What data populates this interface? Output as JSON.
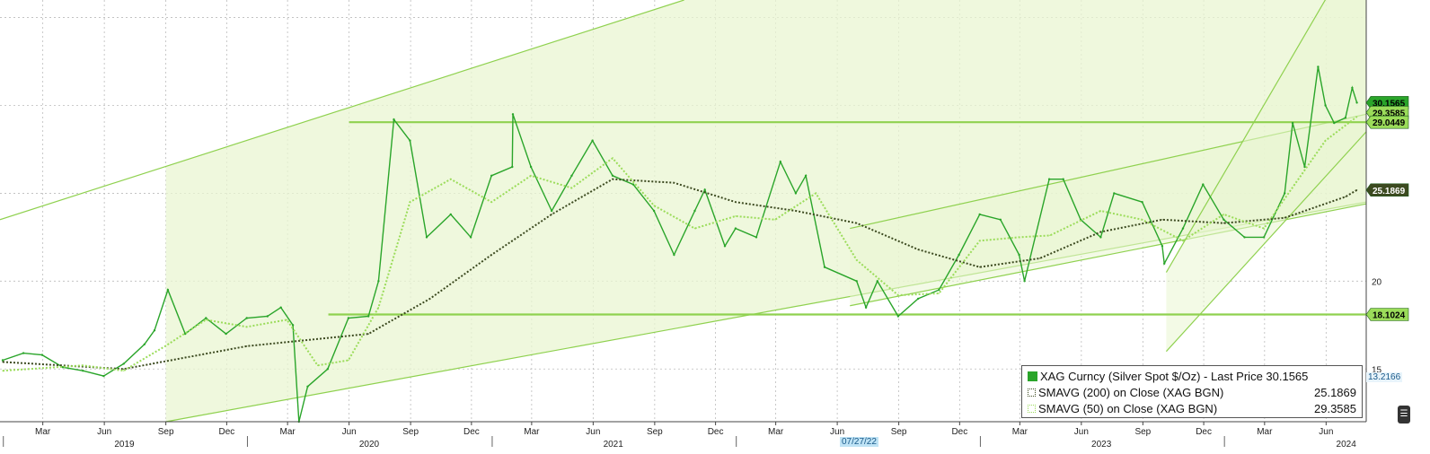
{
  "chart_data": {
    "type": "line",
    "title": "",
    "xlabel": "",
    "ylabel": "",
    "instrument": "XAG Curncy",
    "x_range": [
      "2018-12-27",
      "2024-07-31"
    ],
    "y_range": [
      12,
      36
    ],
    "y_ticks": [
      15,
      20
    ],
    "x_month_ticks": [
      {
        "label": "Mar",
        "date": "2019-03-01"
      },
      {
        "label": "Jun",
        "date": "2019-06-01"
      },
      {
        "label": "Sep",
        "date": "2019-09-01"
      },
      {
        "label": "Dec",
        "date": "2019-12-01"
      },
      {
        "label": "Mar",
        "date": "2020-03-01"
      },
      {
        "label": "Jun",
        "date": "2020-06-01"
      },
      {
        "label": "Sep",
        "date": "2020-09-01"
      },
      {
        "label": "Dec",
        "date": "2020-12-01"
      },
      {
        "label": "Mar",
        "date": "2021-03-01"
      },
      {
        "label": "Jun",
        "date": "2021-06-01"
      },
      {
        "label": "Sep",
        "date": "2021-09-01"
      },
      {
        "label": "Dec",
        "date": "2021-12-01"
      },
      {
        "label": "Mar",
        "date": "2022-03-01"
      },
      {
        "label": "Jun",
        "date": "2022-06-01"
      },
      {
        "label": "Sep",
        "date": "2022-09-01"
      },
      {
        "label": "Dec",
        "date": "2022-12-01"
      },
      {
        "label": "Mar",
        "date": "2023-03-01"
      },
      {
        "label": "Jun",
        "date": "2023-06-01"
      },
      {
        "label": "Sep",
        "date": "2023-09-01"
      },
      {
        "label": "Dec",
        "date": "2023-12-01"
      },
      {
        "label": "Mar",
        "date": "2024-03-01"
      },
      {
        "label": "Jun",
        "date": "2024-06-01"
      }
    ],
    "x_year_ticks": [
      {
        "label": "2019",
        "date": "2019-07-01"
      },
      {
        "label": "2020",
        "date": "2020-07-01"
      },
      {
        "label": "2021",
        "date": "2021-07-01"
      },
      {
        "label": "2023",
        "date": "2023-07-01"
      },
      {
        "label": "2024",
        "date": "2024-07-01"
      }
    ],
    "grid": true,
    "legend_position": "bottom-right",
    "series": [
      {
        "name": "XAG Curncy (Silver Spot  $/Oz) - Last Price",
        "legend_value": "30.1565",
        "color": "#2aa52a",
        "points": [
          [
            "2018-12-31",
            15.5
          ],
          [
            "2019-01-31",
            15.9
          ],
          [
            "2019-02-28",
            15.8
          ],
          [
            "2019-03-31",
            15.1
          ],
          [
            "2019-04-30",
            14.9
          ],
          [
            "2019-05-31",
            14.6
          ],
          [
            "2019-06-30",
            15.3
          ],
          [
            "2019-07-31",
            16.4
          ],
          [
            "2019-08-15",
            17.2
          ],
          [
            "2019-09-04",
            19.5
          ],
          [
            "2019-09-30",
            17.0
          ],
          [
            "2019-10-31",
            17.9
          ],
          [
            "2019-11-30",
            17.0
          ],
          [
            "2019-12-31",
            17.9
          ],
          [
            "2020-01-31",
            18.0
          ],
          [
            "2020-02-20",
            18.5
          ],
          [
            "2020-03-09",
            17.5
          ],
          [
            "2020-03-18",
            12.0
          ],
          [
            "2020-03-31",
            14.0
          ],
          [
            "2020-04-30",
            15.0
          ],
          [
            "2020-05-31",
            17.9
          ],
          [
            "2020-06-30",
            18.0
          ],
          [
            "2020-07-15",
            20.0
          ],
          [
            "2020-08-07",
            29.2
          ],
          [
            "2020-08-31",
            28.0
          ],
          [
            "2020-09-25",
            22.5
          ],
          [
            "2020-10-31",
            23.8
          ],
          [
            "2020-11-30",
            22.5
          ],
          [
            "2020-12-31",
            26.0
          ],
          [
            "2021-01-31",
            26.5
          ],
          [
            "2021-02-01",
            29.5
          ],
          [
            "2021-02-28",
            26.5
          ],
          [
            "2021-03-31",
            24.0
          ],
          [
            "2021-04-30",
            26.0
          ],
          [
            "2021-05-31",
            28.0
          ],
          [
            "2021-06-30",
            26.0
          ],
          [
            "2021-07-31",
            25.5
          ],
          [
            "2021-08-31",
            24.0
          ],
          [
            "2021-09-30",
            21.5
          ],
          [
            "2021-10-31",
            24.0
          ],
          [
            "2021-11-15",
            25.2
          ],
          [
            "2021-12-15",
            22.0
          ],
          [
            "2021-12-31",
            23.0
          ],
          [
            "2022-01-31",
            22.5
          ],
          [
            "2022-03-08",
            26.8
          ],
          [
            "2022-03-31",
            25.0
          ],
          [
            "2022-04-15",
            26.0
          ],
          [
            "2022-05-13",
            20.8
          ],
          [
            "2022-06-30",
            20.0
          ],
          [
            "2022-07-14",
            18.5
          ],
          [
            "2022-07-31",
            20.0
          ],
          [
            "2022-08-31",
            18.0
          ],
          [
            "2022-09-30",
            19.0
          ],
          [
            "2022-10-31",
            19.5
          ],
          [
            "2022-11-30",
            21.5
          ],
          [
            "2022-12-31",
            23.8
          ],
          [
            "2023-01-31",
            23.5
          ],
          [
            "2023-02-28",
            21.5
          ],
          [
            "2023-03-08",
            20.0
          ],
          [
            "2023-04-14",
            25.8
          ],
          [
            "2023-05-05",
            25.8
          ],
          [
            "2023-05-31",
            23.5
          ],
          [
            "2023-06-30",
            22.5
          ],
          [
            "2023-07-20",
            25.0
          ],
          [
            "2023-08-31",
            24.5
          ],
          [
            "2023-09-30",
            22.0
          ],
          [
            "2023-10-03",
            21.0
          ],
          [
            "2023-10-31",
            23.0
          ],
          [
            "2023-11-30",
            25.5
          ],
          [
            "2023-12-31",
            23.5
          ],
          [
            "2024-01-31",
            22.5
          ],
          [
            "2024-02-29",
            22.5
          ],
          [
            "2024-03-31",
            25.0
          ],
          [
            "2024-04-12",
            29.0
          ],
          [
            "2024-04-30",
            26.5
          ],
          [
            "2024-05-20",
            32.2
          ],
          [
            "2024-05-31",
            30.0
          ],
          [
            "2024-06-13",
            29.0
          ],
          [
            "2024-06-30",
            29.3
          ],
          [
            "2024-07-10",
            31.0
          ],
          [
            "2024-07-17",
            30.1565
          ]
        ]
      },
      {
        "name": "SMAVG (200)  on Close (XAG BGN)",
        "legend_value": "25.1869",
        "color": "#3c4a20",
        "points": [
          [
            "2018-12-31",
            15.4
          ],
          [
            "2019-06-30",
            15.0
          ],
          [
            "2019-12-31",
            16.3
          ],
          [
            "2020-06-30",
            17.0
          ],
          [
            "2020-09-30",
            19.0
          ],
          [
            "2020-12-31",
            21.5
          ],
          [
            "2021-03-31",
            23.8
          ],
          [
            "2021-06-30",
            25.8
          ],
          [
            "2021-09-30",
            25.6
          ],
          [
            "2021-12-31",
            24.5
          ],
          [
            "2022-03-31",
            24.0
          ],
          [
            "2022-06-30",
            23.3
          ],
          [
            "2022-09-30",
            21.8
          ],
          [
            "2022-12-31",
            20.8
          ],
          [
            "2023-03-31",
            21.3
          ],
          [
            "2023-06-30",
            22.8
          ],
          [
            "2023-09-30",
            23.5
          ],
          [
            "2023-12-31",
            23.3
          ],
          [
            "2024-03-31",
            23.6
          ],
          [
            "2024-06-30",
            24.8
          ],
          [
            "2024-07-17",
            25.1869
          ]
        ]
      },
      {
        "name": "SMAVG (50)  on Close (XAG BGN)",
        "legend_value": "29.3585",
        "color": "#9bdc5a",
        "points": [
          [
            "2018-12-31",
            14.9
          ],
          [
            "2019-04-30",
            15.2
          ],
          [
            "2019-06-30",
            14.9
          ],
          [
            "2019-08-31",
            16.3
          ],
          [
            "2019-10-31",
            17.8
          ],
          [
            "2019-12-31",
            17.4
          ],
          [
            "2020-02-29",
            17.8
          ],
          [
            "2020-04-15",
            15.2
          ],
          [
            "2020-05-31",
            15.5
          ],
          [
            "2020-07-15",
            18.5
          ],
          [
            "2020-08-31",
            24.5
          ],
          [
            "2020-10-31",
            25.8
          ],
          [
            "2020-12-31",
            24.5
          ],
          [
            "2021-02-28",
            26.0
          ],
          [
            "2021-04-30",
            25.3
          ],
          [
            "2021-06-30",
            27.0
          ],
          [
            "2021-08-31",
            24.3
          ],
          [
            "2021-10-31",
            23.0
          ],
          [
            "2021-12-31",
            23.7
          ],
          [
            "2022-02-28",
            23.5
          ],
          [
            "2022-04-30",
            25.0
          ],
          [
            "2022-06-30",
            21.2
          ],
          [
            "2022-08-31",
            19.2
          ],
          [
            "2022-10-31",
            19.3
          ],
          [
            "2022-12-31",
            22.3
          ],
          [
            "2023-02-28",
            22.5
          ],
          [
            "2023-04-15",
            22.6
          ],
          [
            "2023-06-30",
            24.0
          ],
          [
            "2023-08-31",
            23.5
          ],
          [
            "2023-10-31",
            22.3
          ],
          [
            "2023-12-31",
            23.8
          ],
          [
            "2024-02-29",
            23.0
          ],
          [
            "2024-04-15",
            25.5
          ],
          [
            "2024-05-31",
            28.0
          ],
          [
            "2024-07-17",
            29.3585
          ]
        ]
      }
    ],
    "horizontal_levels": [
      {
        "value": 29.0449,
        "label": "29.0449",
        "from": "2020-06-01",
        "to": "2024-07-31"
      },
      {
        "value": 18.1024,
        "label": "18.1024",
        "from": "2020-05-01",
        "to": "2024-07-31"
      }
    ],
    "channels": [
      {
        "lower": [
          [
            "2019-09-01",
            12.0
          ],
          [
            "2024-07-31",
            24.5
          ]
        ],
        "upper": [
          [
            "2018-12-27",
            23.5
          ],
          [
            "2021-10-15",
            36.0
          ]
        ],
        "color": "#8fd14f"
      },
      {
        "lower": [
          [
            "2022-06-20",
            18.6
          ],
          [
            "2024-07-31",
            24.4
          ]
        ],
        "upper": [
          [
            "2022-06-20",
            23.0
          ],
          [
            "2024-07-31",
            29.5
          ]
        ],
        "color": "#8fd14f"
      },
      {
        "lower": [
          [
            "2023-10-06",
            16.0
          ],
          [
            "2024-07-31",
            28.5
          ]
        ],
        "upper": [
          [
            "2023-10-06",
            20.5
          ],
          [
            "2024-07-31",
            40.0
          ]
        ],
        "color": "#8fd14f"
      }
    ],
    "axis_price_tags": [
      {
        "label": "30.1565",
        "value": 30.1565,
        "bg": "#2aa52a",
        "fg": "#000000"
      },
      {
        "label": "29.3585",
        "value": 29.6,
        "bg": "#9bdc5a",
        "fg": "#000000"
      },
      {
        "label": "29.0449",
        "value": 29.0449,
        "bg": "#9bdc5a",
        "fg": "#000000"
      },
      {
        "label": "25.1869",
        "value": 25.1869,
        "bg": "#3c4a20",
        "fg": "#ffffff"
      },
      {
        "label": "18.1024",
        "value": 18.1024,
        "bg": "#9bdc5a",
        "fg": "#000000"
      }
    ]
  },
  "annotations": {
    "right_value": "13.2166",
    "date_marker": "07/27/22"
  },
  "legend": {
    "rows": [
      {
        "label": "XAG Curncy (Silver Spot  $/Oz) - Last Price 30.1565",
        "value": ""
      },
      {
        "label": "SMAVG (200)  on Close (XAG BGN)",
        "value": "25.1869"
      },
      {
        "label": "SMAVG (50)  on Close (XAG BGN)",
        "value": "29.3585"
      }
    ]
  },
  "icons": {
    "corner": "chart-settings-icon"
  },
  "colors": {
    "price": "#2aa52a",
    "channel_fill": "#eaf6d2",
    "level_line": "#8fd14f",
    "grid": "#bbbbbb"
  }
}
